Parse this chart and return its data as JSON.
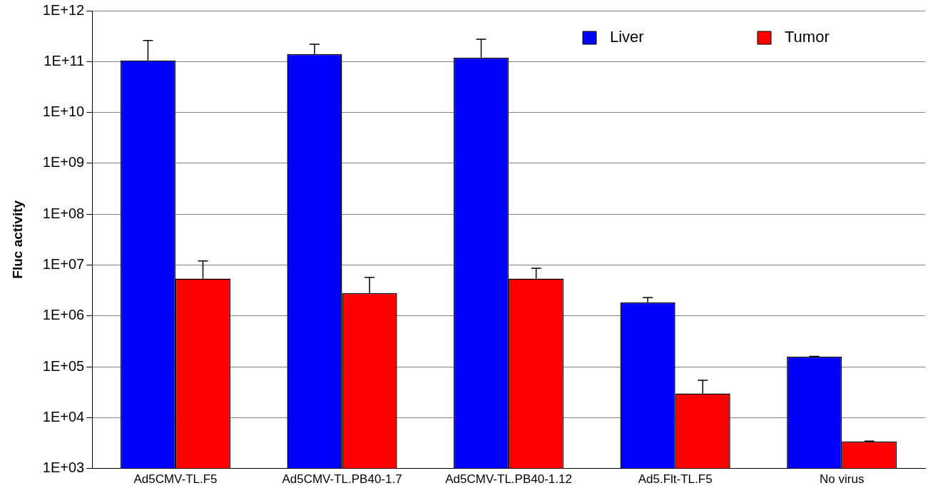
{
  "chart_data": {
    "type": "bar",
    "ylabel": "Fluc activity",
    "categories": [
      "Ad5CMV-TL.F5",
      "Ad5CMV-TL.PB40-1.7",
      "Ad5CMV-TL.PB40-1.12",
      "Ad5.Flt-TL.F5",
      "No virus"
    ],
    "series": [
      {
        "name": "Liver",
        "color": "#0000ff",
        "values": [
          105000000000,
          140000000000,
          120000000000,
          1850000,
          158000
        ],
        "errors": [
          [
            105000000000,
            260000000000
          ],
          [
            140000000000,
            220000000000
          ],
          [
            120000000000,
            275000000000
          ],
          [
            1850000,
            2300000
          ],
          [
            158000,
            160000
          ]
        ]
      },
      {
        "name": "Tumor",
        "color": "#ff0000",
        "values": [
          5400000,
          2800000,
          5400000,
          29700,
          3400
        ],
        "errors": [
          [
            5400000,
            12000000
          ],
          [
            2800000,
            5700000
          ],
          [
            5400000,
            8600000
          ],
          [
            29700,
            54000
          ],
          [
            3400,
            3450
          ]
        ]
      }
    ],
    "log": true,
    "ylim": [
      1000,
      1000000000000
    ],
    "yticks": [
      {
        "value": 1000,
        "label": "1E+03"
      },
      {
        "value": 10000,
        "label": "1E+04"
      },
      {
        "value": 100000,
        "label": "1E+05"
      },
      {
        "value": 1000000,
        "label": "1E+06"
      },
      {
        "value": 10000000,
        "label": "1E+07"
      },
      {
        "value": 100000000,
        "label": "1E+08"
      },
      {
        "value": 1000000000,
        "label": "1E+09"
      },
      {
        "value": 10000000000,
        "label": "1E+10"
      },
      {
        "value": 100000000000,
        "label": "1E+11"
      },
      {
        "value": 1000000000000,
        "label": "1E+12"
      }
    ],
    "grid": "y",
    "legend": "top right"
  }
}
